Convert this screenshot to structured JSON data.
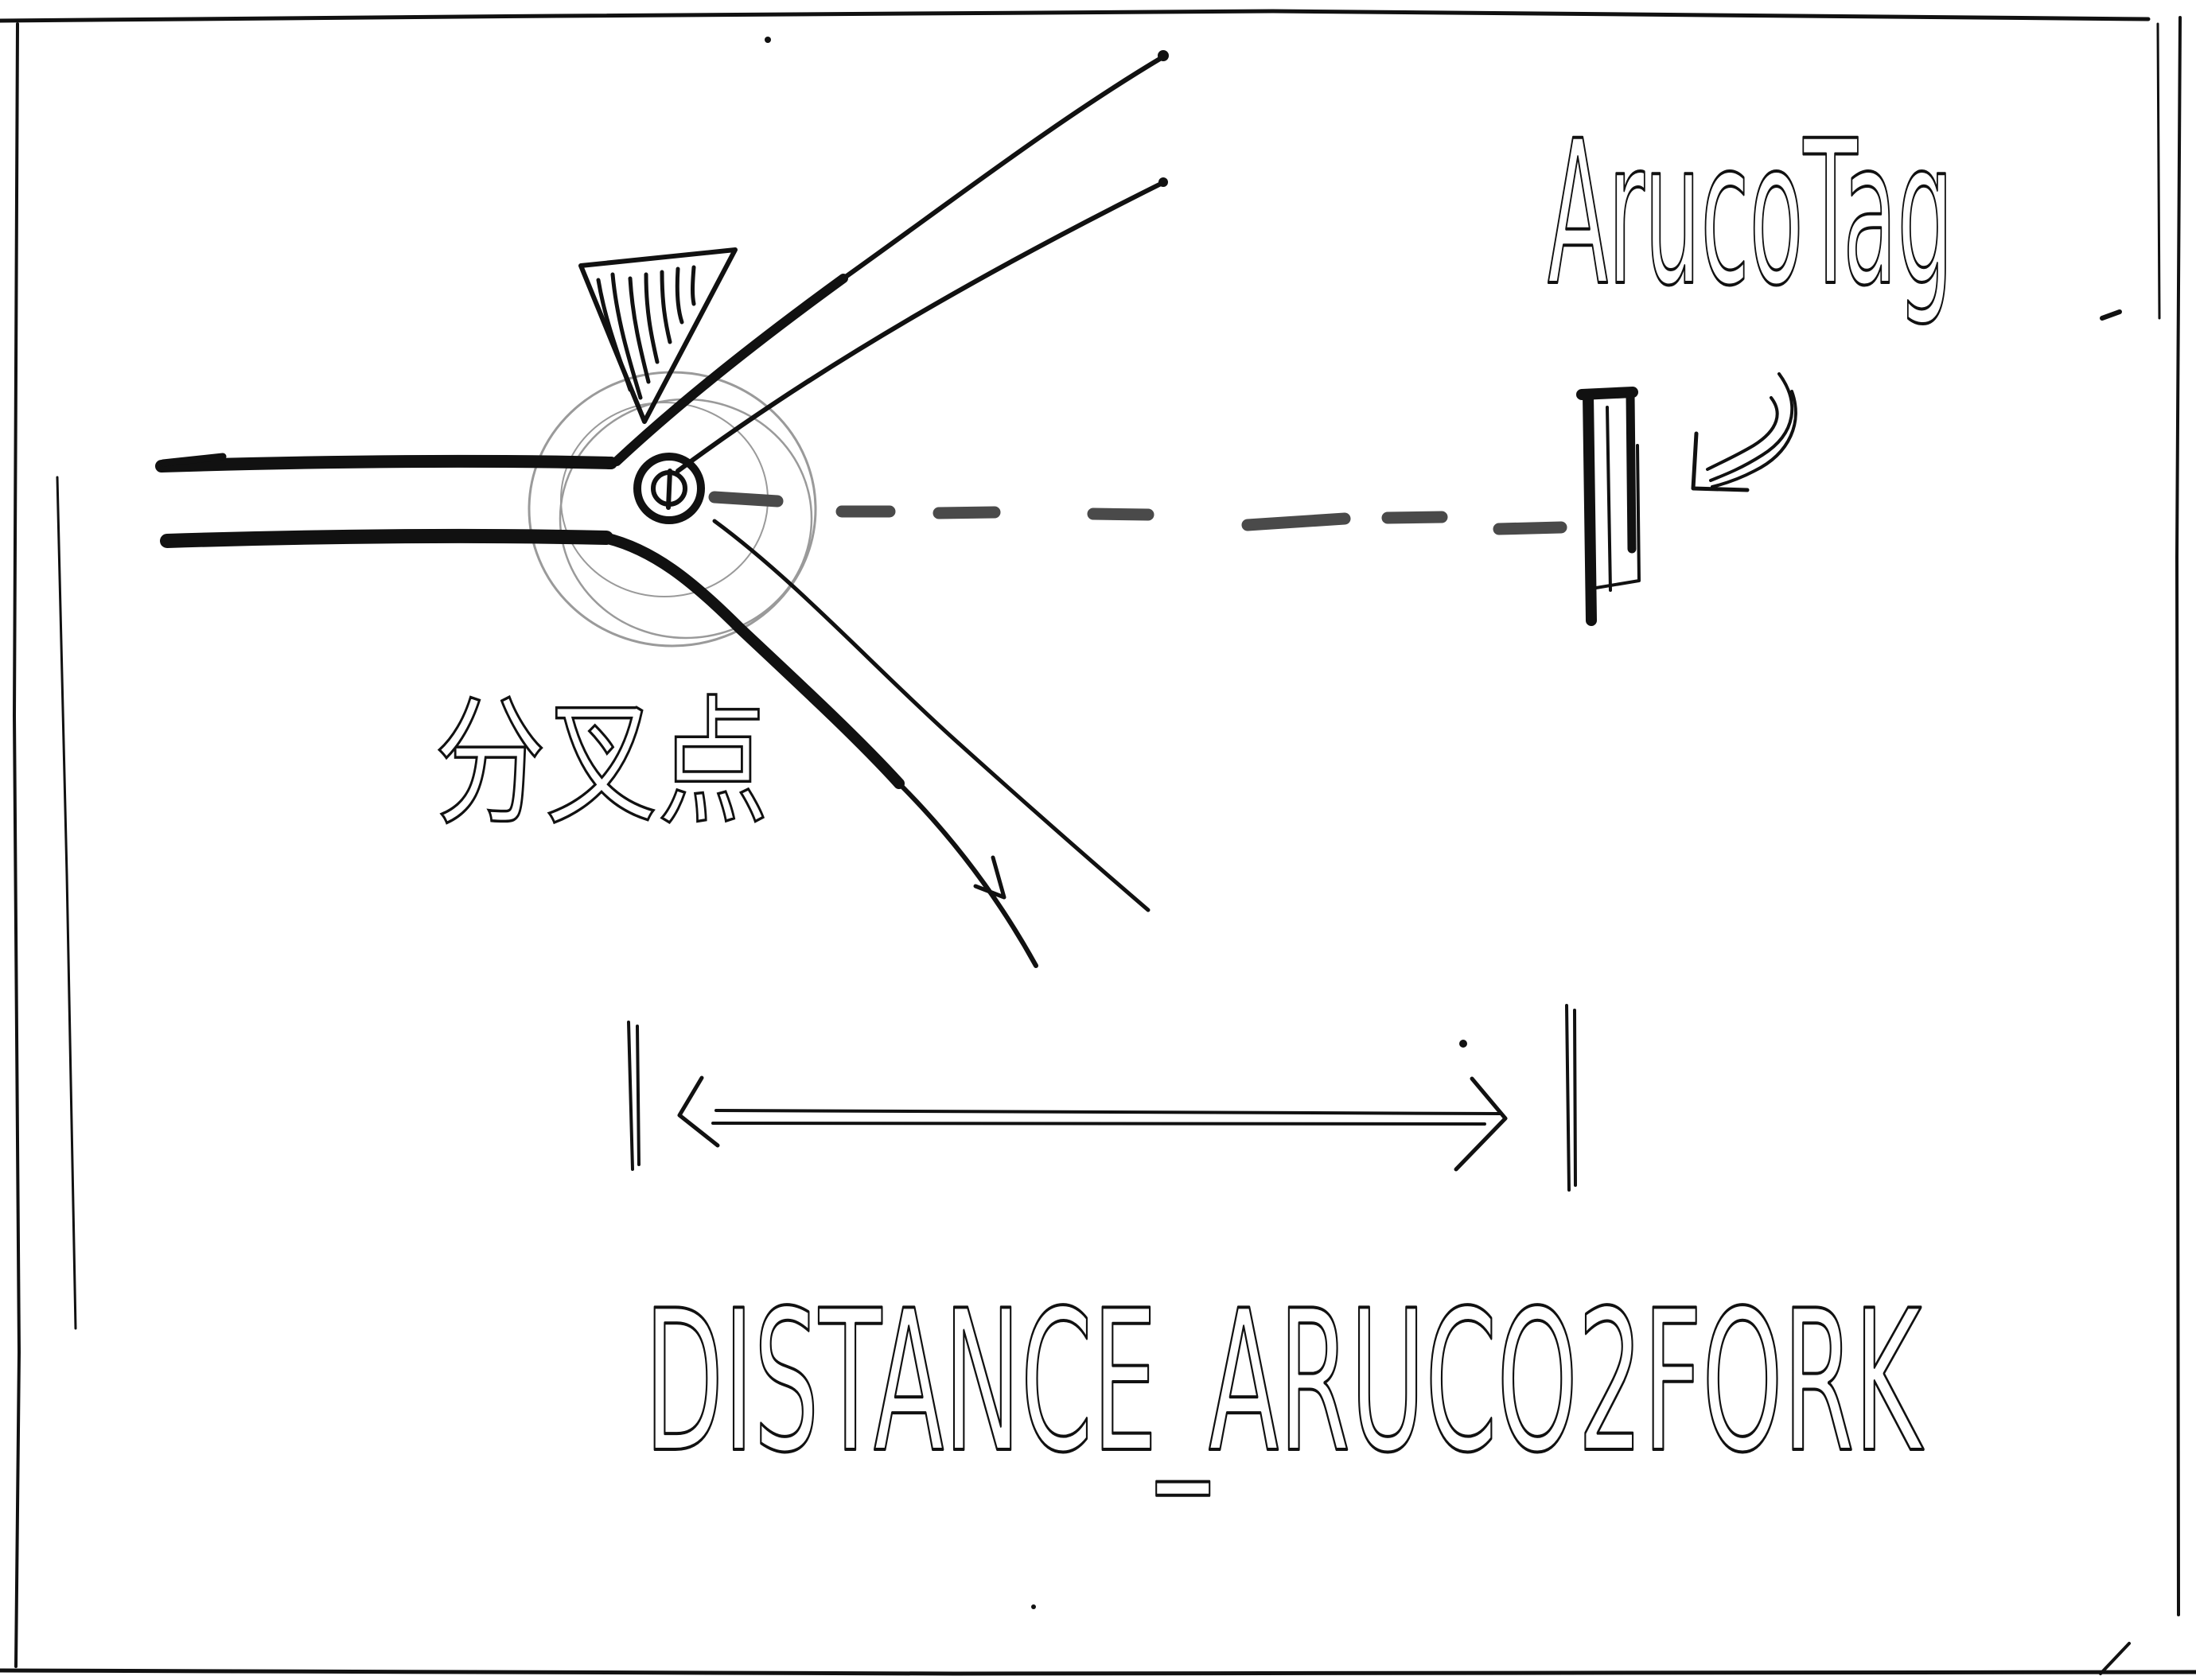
{
  "colors": {
    "ink": "#111111",
    "paper": "#ffffff",
    "faint": "#9a9a9a"
  },
  "labels": {
    "aruco_tag": "ArucoTag",
    "fork_point": "分叉点",
    "distance_label": "DISTANCE_ARUCO2FORK"
  }
}
